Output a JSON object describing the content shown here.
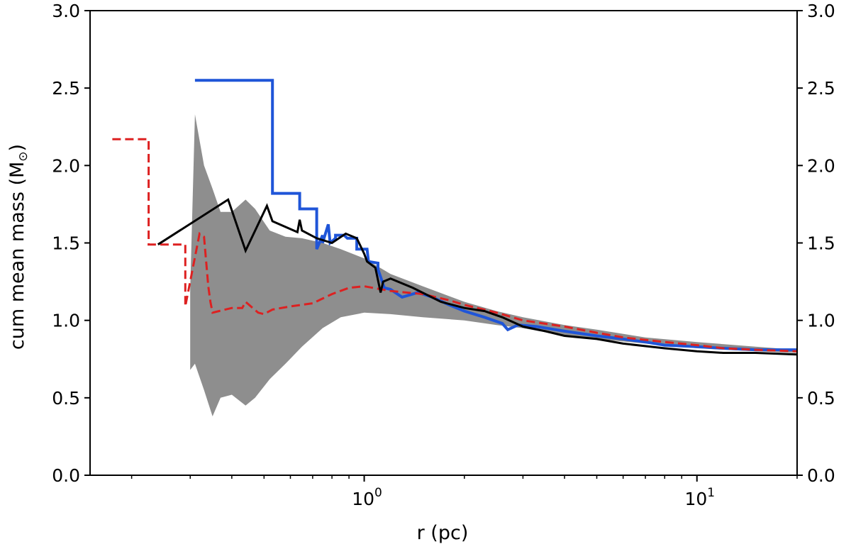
{
  "chart_data": {
    "type": "line",
    "title": "",
    "xlabel": "r (pc)",
    "ylabel_prefix": "cum mean mass (M",
    "ylabel_sub": "⊙",
    "ylabel_suffix": ")",
    "xscale": "log",
    "xlim": [
      0.15,
      20
    ],
    "ylim": [
      0.0,
      3.0
    ],
    "y_ticks": [
      "0.0",
      "0.5",
      "1.0",
      "1.5",
      "2.0",
      "2.5",
      "3.0"
    ],
    "x_ticks": [
      {
        "value": 1,
        "base": "10",
        "exponent": "0"
      },
      {
        "value": 10,
        "base": "10",
        "exponent": "1"
      }
    ],
    "secondary_y_axis": true,
    "series": [
      {
        "name": "blue",
        "color": "#1f55d8",
        "dash": "solid",
        "x": [
          0.31,
          0.53,
          0.53,
          0.64,
          0.64,
          0.72,
          0.72,
          0.75,
          0.75,
          0.78,
          0.79,
          0.82,
          0.82,
          0.87,
          0.89,
          0.95,
          0.95,
          1.02,
          1.03,
          1.1,
          1.1,
          1.12,
          1.15,
          1.2,
          1.3,
          1.45,
          1.6,
          1.8,
          2.0,
          2.3,
          2.6,
          2.7,
          2.9,
          3.3,
          4.0,
          5.0,
          6.0,
          7.0,
          8.0,
          10.0,
          12.0,
          15.0,
          20.0
        ],
        "y": [
          2.55,
          2.55,
          1.82,
          1.82,
          1.72,
          1.72,
          1.46,
          1.55,
          1.5,
          1.62,
          1.5,
          1.53,
          1.55,
          1.55,
          1.53,
          1.53,
          1.46,
          1.46,
          1.38,
          1.37,
          1.33,
          1.28,
          1.21,
          1.2,
          1.15,
          1.18,
          1.15,
          1.1,
          1.06,
          1.02,
          0.98,
          0.94,
          0.97,
          0.96,
          0.93,
          0.9,
          0.88,
          0.86,
          0.84,
          0.83,
          0.82,
          0.81,
          0.81
        ]
      },
      {
        "name": "red dashed",
        "color": "#dd2121",
        "dash": "dashed",
        "x": [
          0.175,
          0.225,
          0.225,
          0.24,
          0.24,
          0.29,
          0.29,
          0.32,
          0.33,
          0.34,
          0.345,
          0.35,
          0.4,
          0.43,
          0.44,
          0.48,
          0.5,
          0.53,
          0.6,
          0.7,
          0.8,
          0.9,
          1.0,
          1.2,
          1.5,
          1.8,
          2.0,
          2.5,
          3.0,
          4.0,
          5.0,
          6.0,
          8.0,
          10.0,
          12.0,
          15.0,
          20.0
        ],
        "y": [
          2.17,
          2.17,
          1.49,
          1.49,
          1.49,
          1.49,
          1.09,
          1.56,
          1.54,
          1.22,
          1.12,
          1.05,
          1.08,
          1.08,
          1.12,
          1.05,
          1.04,
          1.07,
          1.09,
          1.11,
          1.17,
          1.21,
          1.22,
          1.19,
          1.17,
          1.13,
          1.1,
          1.05,
          1.0,
          0.96,
          0.92,
          0.89,
          0.86,
          0.84,
          0.82,
          0.81,
          0.8
        ]
      },
      {
        "name": "black",
        "color": "#000000",
        "dash": "solid",
        "x": [
          0.24,
          0.39,
          0.44,
          0.51,
          0.53,
          0.63,
          0.64,
          0.65,
          0.72,
          0.8,
          0.88,
          0.95,
          1.0,
          1.02,
          1.08,
          1.12,
          1.14,
          1.2,
          1.4,
          1.7,
          2.0,
          2.3,
          2.6,
          3.0,
          3.5,
          4.0,
          5.0,
          6.0,
          8.0,
          10.0,
          12.0,
          15.0,
          20.0
        ],
        "y": [
          1.49,
          1.78,
          1.45,
          1.74,
          1.64,
          1.57,
          1.65,
          1.58,
          1.53,
          1.5,
          1.56,
          1.53,
          1.43,
          1.38,
          1.34,
          1.18,
          1.25,
          1.27,
          1.21,
          1.12,
          1.08,
          1.06,
          1.02,
          0.96,
          0.93,
          0.9,
          0.88,
          0.85,
          0.82,
          0.8,
          0.79,
          0.79,
          0.78
        ]
      }
    ],
    "band": {
      "name": "grey envelope",
      "color": "#7a7a7a",
      "x": [
        0.3,
        0.31,
        0.33,
        0.35,
        0.37,
        0.4,
        0.44,
        0.47,
        0.52,
        0.58,
        0.65,
        0.75,
        0.85,
        1.0,
        1.2,
        1.5,
        2.0,
        2.5,
        3.0,
        4.0,
        5.0,
        7.0,
        10.0,
        15.0,
        20.0
      ],
      "upper": [
        1.2,
        2.33,
        2.0,
        1.85,
        1.7,
        1.7,
        1.78,
        1.72,
        1.58,
        1.54,
        1.53,
        1.5,
        1.46,
        1.4,
        1.3,
        1.22,
        1.12,
        1.06,
        1.02,
        0.97,
        0.94,
        0.89,
        0.86,
        0.83,
        0.81
      ],
      "lower": [
        0.68,
        0.72,
        0.55,
        0.38,
        0.5,
        0.52,
        0.45,
        0.5,
        0.62,
        0.72,
        0.83,
        0.95,
        1.02,
        1.05,
        1.04,
        1.02,
        1.0,
        0.97,
        0.95,
        0.9,
        0.88,
        0.85,
        0.82,
        0.8,
        0.79
      ]
    }
  }
}
